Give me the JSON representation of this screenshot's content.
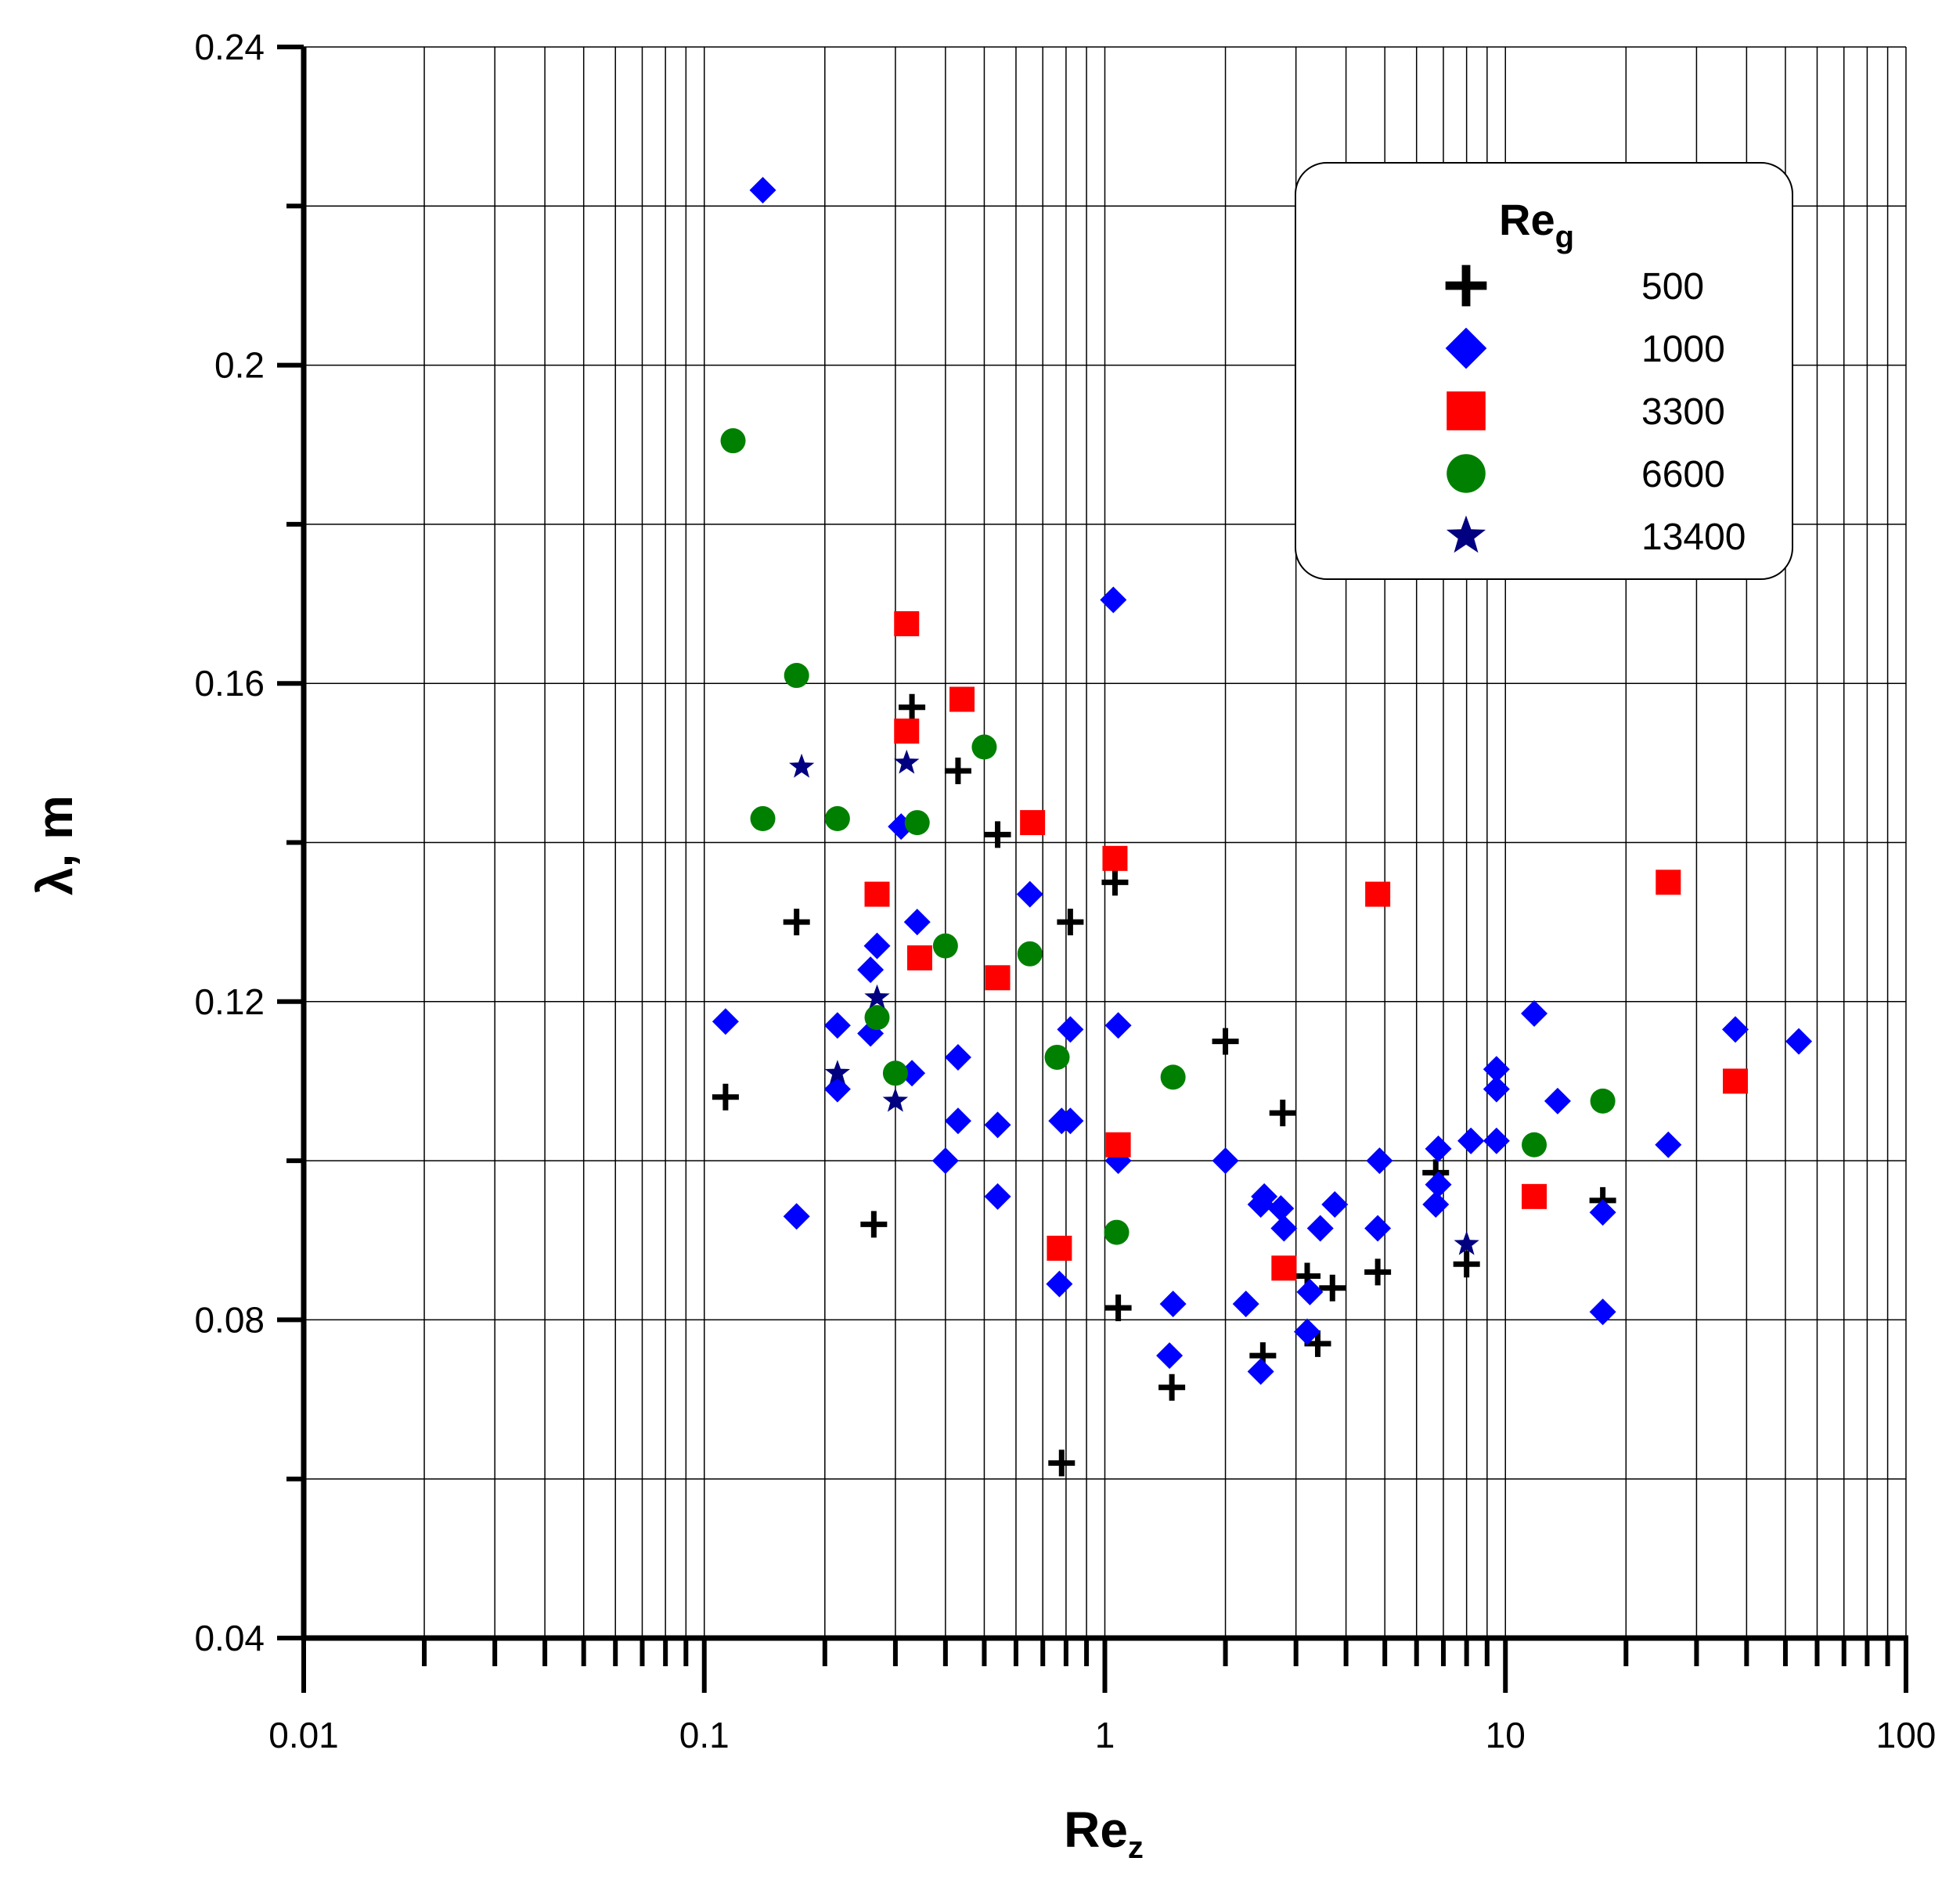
{
  "chart_data": {
    "type": "scatter",
    "xlabel": "Re",
    "xlabel_sub": "z",
    "ylabel": "λ, m",
    "x_scale": "log",
    "xlim": [
      0.01,
      100
    ],
    "ylim": [
      0.04,
      0.24
    ],
    "x_tick_labels": [
      "0.01",
      "0.1",
      "1",
      "10",
      "100"
    ],
    "y_tick_labels": [
      "0.04",
      "0.08",
      "0.12",
      "0.16",
      "0.2",
      "0.24"
    ],
    "grid": true,
    "legend_position": "top-right",
    "legend_title": "Re",
    "legend_title_sub": "g",
    "series": [
      {
        "name": "500",
        "marker": "plus",
        "color": "#000000",
        "points": [
          [
            0.113,
            0.108
          ],
          [
            0.17,
            0.13
          ],
          [
            0.265,
            0.092
          ],
          [
            0.33,
            0.157
          ],
          [
            0.43,
            0.149
          ],
          [
            0.54,
            0.141
          ],
          [
            0.78,
            0.062
          ],
          [
            0.82,
            0.13
          ],
          [
            1.06,
            0.135
          ],
          [
            1.08,
            0.0815
          ],
          [
            1.47,
            0.0715
          ],
          [
            2.0,
            0.115
          ],
          [
            2.48,
            0.0755
          ],
          [
            2.78,
            0.106
          ],
          [
            3.2,
            0.0855
          ],
          [
            3.4,
            0.077
          ],
          [
            3.7,
            0.084
          ],
          [
            4.8,
            0.086
          ],
          [
            6.7,
            0.0985
          ],
          [
            8.0,
            0.087
          ],
          [
            17.5,
            0.095
          ]
        ]
      },
      {
        "name": "1000",
        "marker": "diamond",
        "color": "#0000ff",
        "points": [
          [
            0.113,
            0.1175
          ],
          [
            0.14,
            0.222
          ],
          [
            0.17,
            0.093
          ],
          [
            0.215,
            0.117
          ],
          [
            0.215,
            0.109
          ],
          [
            0.26,
            0.124
          ],
          [
            0.26,
            0.116
          ],
          [
            0.27,
            0.127
          ],
          [
            0.31,
            0.142
          ],
          [
            0.33,
            0.111
          ],
          [
            0.34,
            0.13
          ],
          [
            0.4,
            0.1
          ],
          [
            0.43,
            0.113
          ],
          [
            0.43,
            0.105
          ],
          [
            0.54,
            0.0955
          ],
          [
            0.54,
            0.1045
          ],
          [
            0.65,
            0.1335
          ],
          [
            0.77,
            0.0845
          ],
          [
            0.78,
            0.105
          ],
          [
            0.82,
            0.105
          ],
          [
            0.82,
            0.1165
          ],
          [
            1.05,
            0.1705
          ],
          [
            1.08,
            0.117
          ],
          [
            1.08,
            0.1
          ],
          [
            1.45,
            0.0755
          ],
          [
            1.48,
            0.082
          ],
          [
            2.0,
            0.1
          ],
          [
            2.25,
            0.082
          ],
          [
            2.45,
            0.0735
          ],
          [
            2.45,
            0.0945
          ],
          [
            2.5,
            0.0955
          ],
          [
            2.75,
            0.094
          ],
          [
            2.8,
            0.0915
          ],
          [
            3.2,
            0.0785
          ],
          [
            3.25,
            0.0835
          ],
          [
            3.45,
            0.0915
          ],
          [
            3.75,
            0.0945
          ],
          [
            4.85,
            0.1
          ],
          [
            4.8,
            0.0915
          ],
          [
            6.7,
            0.0945
          ],
          [
            6.8,
            0.097
          ],
          [
            6.8,
            0.1015
          ],
          [
            8.2,
            0.1025
          ],
          [
            8.2,
            0.1025
          ],
          [
            9.5,
            0.1025
          ],
          [
            9.5,
            0.109
          ],
          [
            9.5,
            0.1115
          ],
          [
            11.8,
            0.1185
          ],
          [
            13.5,
            0.1075
          ],
          [
            17.5,
            0.0935
          ],
          [
            17.5,
            0.081
          ],
          [
            25.5,
            0.102
          ],
          [
            37.5,
            0.1165
          ],
          [
            54.0,
            0.115
          ]
        ]
      },
      {
        "name": "3300",
        "marker": "square",
        "color": "#ff0000",
        "points": [
          [
            0.27,
            0.1335
          ],
          [
            0.32,
            0.1675
          ],
          [
            0.32,
            0.154
          ],
          [
            0.345,
            0.1255
          ],
          [
            0.44,
            0.158
          ],
          [
            0.54,
            0.123
          ],
          [
            0.66,
            0.1425
          ],
          [
            0.77,
            0.089
          ],
          [
            1.06,
            0.138
          ],
          [
            1.08,
            0.102
          ],
          [
            2.8,
            0.0865
          ],
          [
            4.8,
            0.1335
          ],
          [
            11.8,
            0.0955
          ],
          [
            25.5,
            0.135
          ],
          [
            37.5,
            0.11
          ]
        ]
      },
      {
        "name": "6600",
        "marker": "circle",
        "color": "#008000",
        "points": [
          [
            0.118,
            0.1905
          ],
          [
            0.14,
            0.143
          ],
          [
            0.17,
            0.161
          ],
          [
            0.215,
            0.143
          ],
          [
            0.27,
            0.118
          ],
          [
            0.3,
            0.111
          ],
          [
            0.34,
            0.1425
          ],
          [
            0.4,
            0.127
          ],
          [
            0.5,
            0.152
          ],
          [
            0.65,
            0.126
          ],
          [
            0.76,
            0.113
          ],
          [
            1.07,
            0.091
          ],
          [
            1.48,
            0.1105
          ],
          [
            11.8,
            0.102
          ],
          [
            17.5,
            0.1075
          ]
        ]
      },
      {
        "name": "13400",
        "marker": "star",
        "color": "#000080",
        "points": [
          [
            0.175,
            0.1495
          ],
          [
            0.215,
            0.111
          ],
          [
            0.27,
            0.1205
          ],
          [
            0.3,
            0.1075
          ],
          [
            0.32,
            0.15
          ],
          [
            8.0,
            0.0895
          ]
        ]
      }
    ]
  }
}
